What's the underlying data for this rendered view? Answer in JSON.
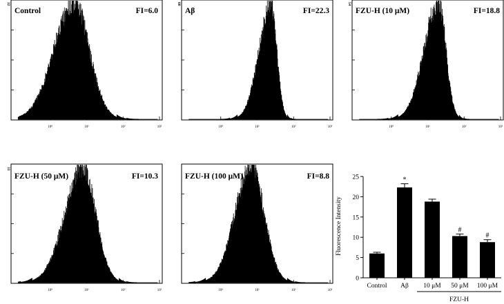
{
  "chart_data": [
    {
      "type": "area",
      "panel": "histogram",
      "title": "Control",
      "annotation": "FI=6.0",
      "y_max_label": "32",
      "x_tick_labels": [
        "10⁰",
        "10¹",
        "10²",
        "10³"
      ],
      "x_scale": "log",
      "xlim": [
        0.1,
        1000
      ],
      "peak_x": 4.5,
      "spread_left": 0.55,
      "spread_right": 0.42
    },
    {
      "type": "area",
      "panel": "histogram",
      "title": "Aβ",
      "annotation": "FI=22.3",
      "y_max_label": "60",
      "x_tick_labels": [
        "10⁰",
        "10¹",
        "10²",
        "10³"
      ],
      "x_scale": "log",
      "xlim": [
        0.1,
        1000
      ],
      "peak_x": 24,
      "spread_left": 0.33,
      "spread_right": 0.16
    },
    {
      "type": "area",
      "panel": "histogram",
      "title": "FZU-H (10 μM)",
      "annotation": "FI=18.8",
      "y_max_label": "54",
      "x_tick_labels": [
        "10⁰",
        "10¹",
        "10²",
        "10³"
      ],
      "x_scale": "log",
      "xlim": [
        0.1,
        1000
      ],
      "peak_x": 20,
      "spread_left": 0.4,
      "spread_right": 0.2
    },
    {
      "type": "area",
      "panel": "histogram",
      "title": "FZU-H (50 μM)",
      "annotation": "FI=10.3",
      "y_max_label": "33",
      "x_tick_labels": [
        "10⁰",
        "10¹",
        "10²",
        "10³"
      ],
      "x_scale": "log",
      "xlim": [
        0.1,
        1000
      ],
      "peak_x": 8,
      "spread_left": 0.5,
      "spread_right": 0.35
    },
    {
      "type": "area",
      "panel": "histogram",
      "title": "FZU-H (100 μM)",
      "annotation": "FI=8.8",
      "y_max_label": "",
      "x_tick_labels": [
        "10⁰",
        "10¹",
        "10²",
        "10³"
      ],
      "x_scale": "log",
      "xlim": [
        0.1,
        1000
      ],
      "peak_x": 7,
      "spread_left": 0.45,
      "spread_right": 0.35
    },
    {
      "type": "bar",
      "categories": [
        "Control",
        "Aβ",
        "10 μM",
        "50 μM",
        "100 μM"
      ],
      "values": [
        6.0,
        22.3,
        18.8,
        10.3,
        8.8
      ],
      "errors": [
        0.3,
        0.9,
        0.6,
        0.5,
        0.6
      ],
      "marks": [
        "",
        "*",
        "",
        "#",
        "#"
      ],
      "group_label": "FZU-H",
      "group_categories": [
        "10 μM",
        "50 μM",
        "100 μM"
      ],
      "ylabel": "Fluorescence Intensity",
      "xlabel": "",
      "ylim": [
        0,
        25
      ],
      "yticks": [
        "0",
        "5",
        "10",
        "15",
        "20",
        "25"
      ]
    }
  ],
  "colors": {
    "fill": "#333333",
    "stroke": "#000000",
    "background": "#ffffff"
  }
}
